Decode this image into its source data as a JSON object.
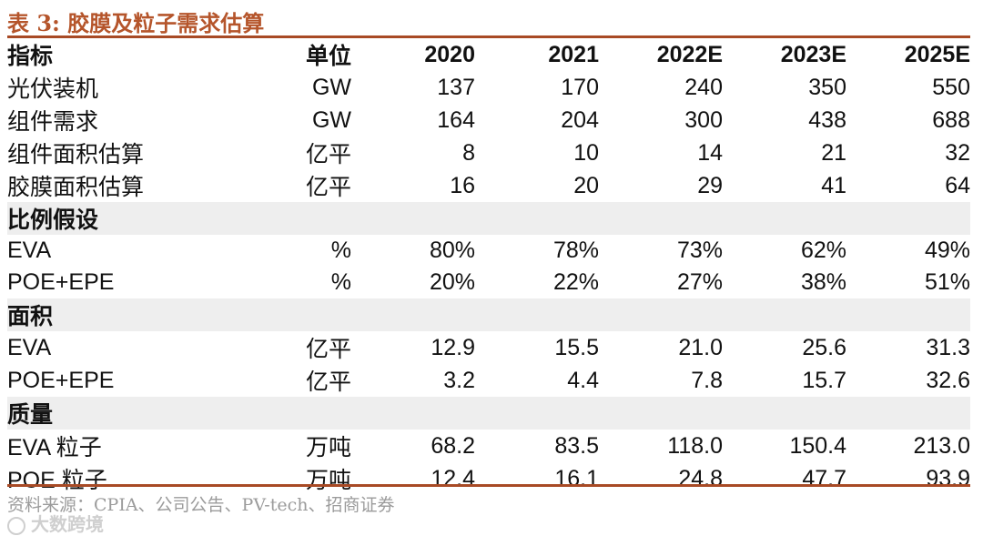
{
  "title": "表 3:  胶膜及粒子需求估算",
  "header": {
    "indicator": "指标",
    "unit": "单位",
    "years": [
      "2020",
      "2021",
      "2022E",
      "2023E",
      "2025E"
    ]
  },
  "rows": {
    "pv_install": {
      "label": "光伏装机",
      "unit": "GW",
      "values": [
        "137",
        "170",
        "240",
        "350",
        "550"
      ]
    },
    "module_demand": {
      "label": "组件需求",
      "unit": "GW",
      "values": [
        "164",
        "204",
        "300",
        "438",
        "688"
      ]
    },
    "module_area": {
      "label": "组件面积估算",
      "unit": "亿平",
      "values": [
        "8",
        "10",
        "14",
        "21",
        "32"
      ]
    },
    "film_area": {
      "label": "胶膜面积估算",
      "unit": "亿平",
      "values": [
        "16",
        "20",
        "29",
        "41",
        "64"
      ]
    }
  },
  "section_ratio": {
    "title": "比例假设",
    "eva": {
      "label": "EVA",
      "unit": "%",
      "values": [
        "80%",
        "78%",
        "73%",
        "62%",
        "49%"
      ]
    },
    "poe_epe": {
      "label": "POE+EPE",
      "unit": "%",
      "values": [
        "20%",
        "22%",
        "27%",
        "38%",
        "51%"
      ]
    }
  },
  "section_area": {
    "title": "面积",
    "eva": {
      "label": "EVA",
      "unit": "亿平",
      "values": [
        "12.9",
        "15.5",
        "21.0",
        "25.6",
        "31.3"
      ]
    },
    "poe_epe": {
      "label": "POE+EPE",
      "unit": "亿平",
      "values": [
        "3.2",
        "4.4",
        "7.8",
        "15.7",
        "32.6"
      ]
    }
  },
  "section_mass": {
    "title": "质量",
    "eva": {
      "label": "EVA 粒子",
      "unit": "万吨",
      "values": [
        "68.2",
        "83.5",
        "118.0",
        "150.4",
        "213.0"
      ]
    },
    "poe": {
      "label": "POE 粒子",
      "unit": "万吨",
      "values": [
        "12.4",
        "16.1",
        "24.8",
        "47.7",
        "93.9"
      ]
    }
  },
  "source": "资料来源：CPIA、公司公告、PV-tech、招商证券",
  "watermark": "大数跨境"
}
